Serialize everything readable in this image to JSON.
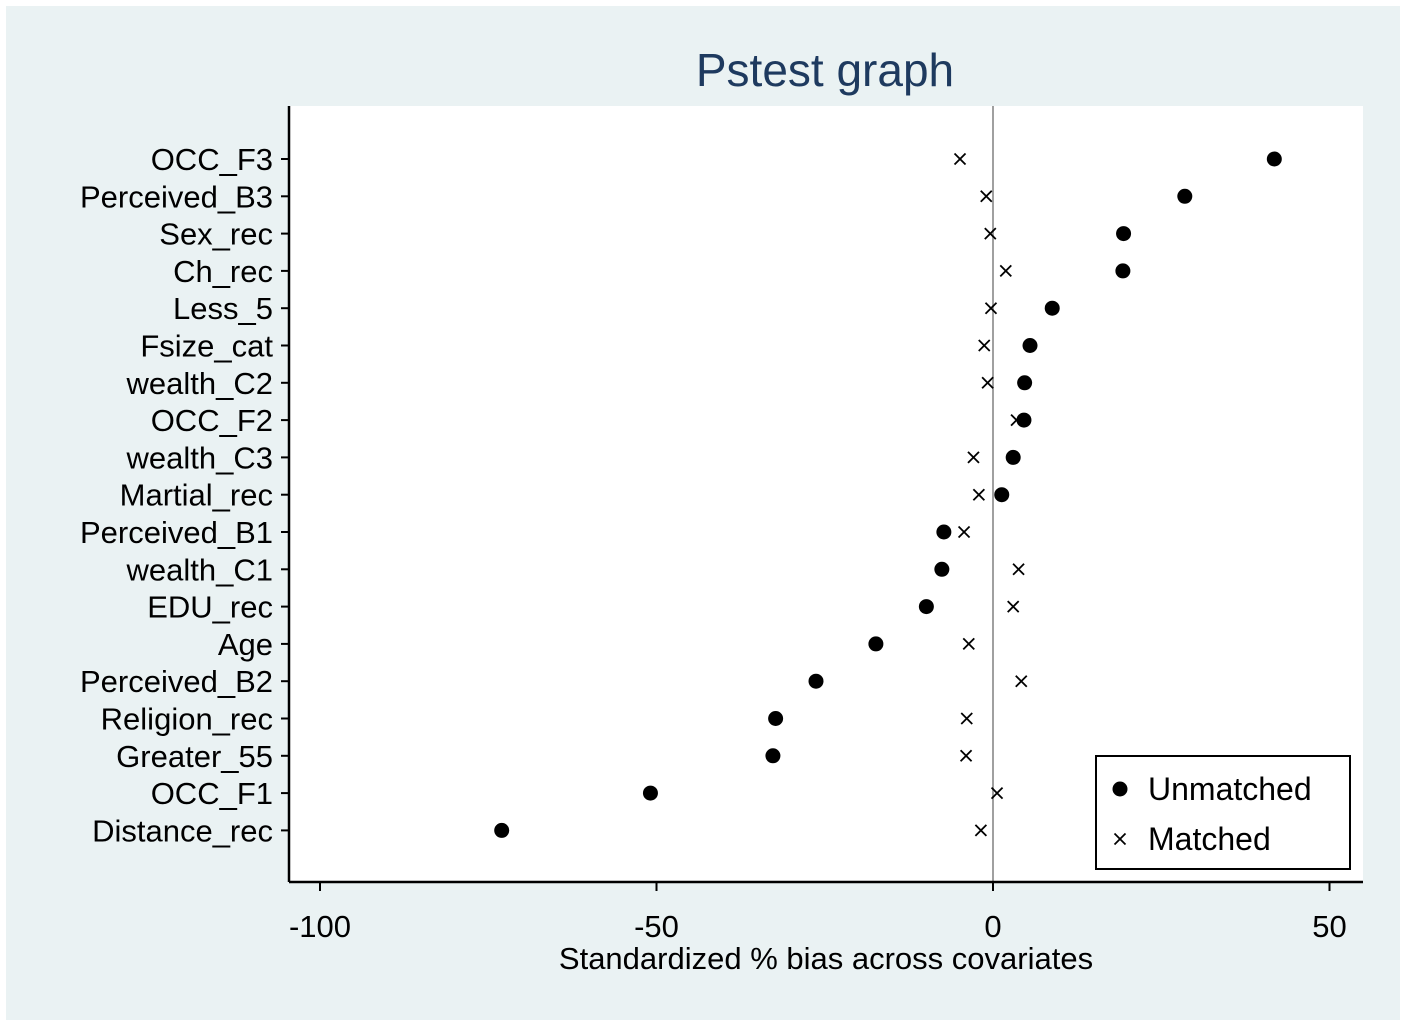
{
  "chart_data": {
    "type": "scatter",
    "title": "Pstest graph",
    "xlabel": "Standardized % bias across covariates",
    "xlim": [
      -105,
      55
    ],
    "xticks": [
      -100,
      -50,
      0,
      50
    ],
    "xtick_labels": [
      "-100",
      "-50",
      "0",
      "50"
    ],
    "reference_line_x": 0,
    "categories": [
      "OCC_F3",
      "Perceived_B3",
      "Sex_rec",
      "Ch_rec",
      "Less_5",
      "Fsize_cat",
      "wealth_C2",
      "OCC_F2",
      "wealth_C3",
      "Martial_rec",
      "Perceived_B1",
      "wealth_C1",
      "EDU_rec",
      "Age",
      "Perceived_B2",
      "Religion_rec",
      "Greater_55",
      "OCC_F1",
      "Distance_rec"
    ],
    "series": [
      {
        "name": "Unmatched",
        "marker": "filled-circle",
        "values": [
          41.8,
          28.5,
          19.4,
          19.3,
          8.8,
          5.5,
          4.7,
          4.6,
          3.0,
          1.3,
          -7.3,
          -7.6,
          -9.9,
          -17.4,
          -26.3,
          -32.3,
          -32.7,
          -50.9,
          -73.0
        ]
      },
      {
        "name": "Matched",
        "marker": "x",
        "values": [
          -4.9,
          -1.0,
          -0.4,
          1.9,
          -0.3,
          -1.3,
          -0.8,
          3.5,
          -2.9,
          -2.1,
          -4.3,
          3.8,
          3.0,
          -3.6,
          4.2,
          -3.9,
          -4.0,
          0.6,
          -1.8
        ]
      }
    ],
    "legend_position": "bottom-right",
    "grid": false
  },
  "colors": {
    "background": "#eaf2f3",
    "plot_area": "#ffffff",
    "title": "#1e3a5f",
    "markers": "#000000",
    "reference_line": "#a0a0a0"
  }
}
